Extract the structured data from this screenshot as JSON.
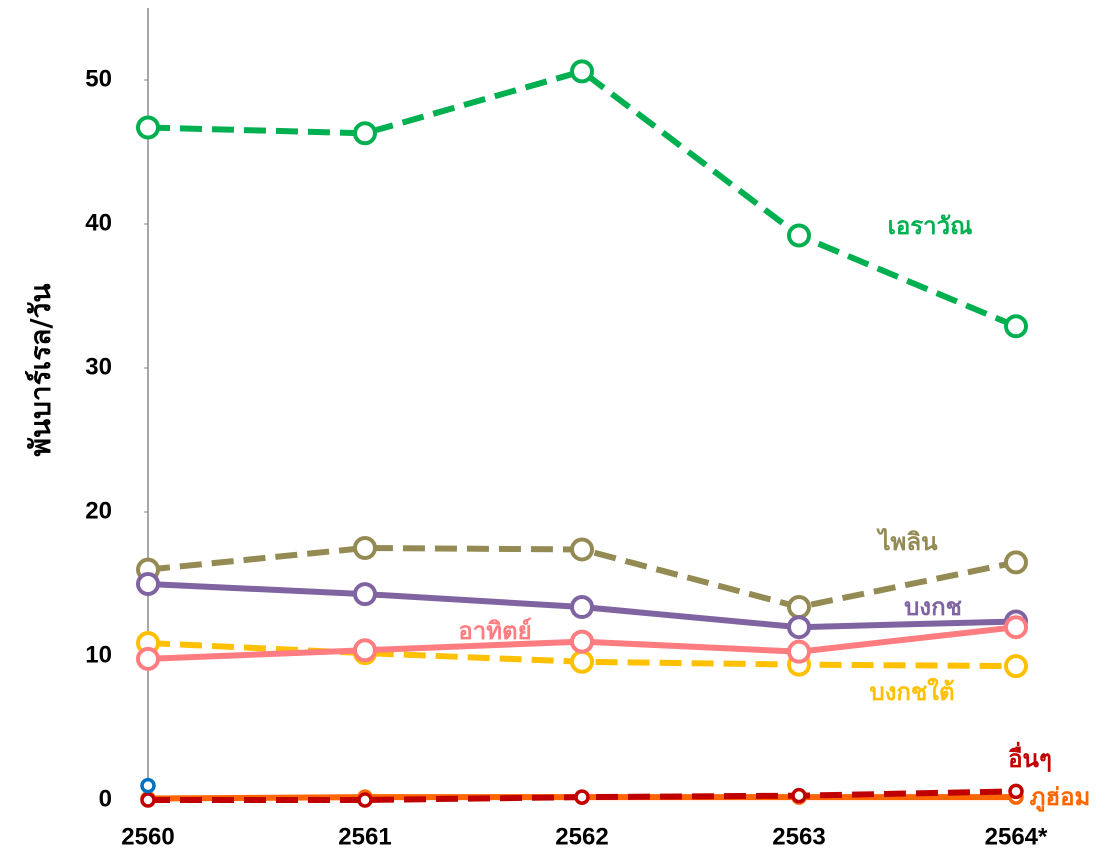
{
  "chart_data": {
    "type": "line",
    "y_label": "พันบาร์เรล/วัน",
    "categories": [
      "2560",
      "2561",
      "2562",
      "2563",
      "2564*"
    ],
    "ylim": [
      0,
      55
    ],
    "yticks": [
      0,
      10,
      20,
      30,
      40,
      50
    ],
    "series": [
      {
        "name": "เอราวัณ",
        "color": "#00b050",
        "dashed": true,
        "values": [
          46.7,
          46.3,
          50.6,
          39.2,
          32.9
        ]
      },
      {
        "name": "ไพลิน",
        "color": "#948a54",
        "dashed": true,
        "values": [
          16.0,
          17.5,
          17.4,
          13.4,
          16.5
        ]
      },
      {
        "name": "บงกช",
        "color": "#8064a2",
        "dashed": false,
        "values": [
          15.0,
          14.3,
          13.4,
          12.0,
          12.4
        ]
      },
      {
        "name": "บงกชใต้",
        "color": "#ffc000",
        "dashed": true,
        "values": [
          10.9,
          10.2,
          9.6,
          9.4,
          9.3
        ]
      },
      {
        "name": "อาทิตย์",
        "color": "#ff7c80",
        "dashed": false,
        "values": [
          9.8,
          10.4,
          11.0,
          10.3,
          12.0
        ]
      },
      {
        "name": "ภูฮ่อม",
        "color": "#ff6600",
        "dashed": false,
        "values": [
          0.1,
          0.2,
          0.2,
          0.2,
          0.2
        ]
      },
      {
        "name": "อื่นๆ",
        "color": "#c00000",
        "dashed": true,
        "values": [
          0,
          0,
          0.2,
          0.3,
          0.6
        ]
      },
      {
        "color": "#0070c0",
        "dashed": false,
        "values": [
          1.0,
          null,
          null,
          null,
          null
        ]
      }
    ]
  }
}
